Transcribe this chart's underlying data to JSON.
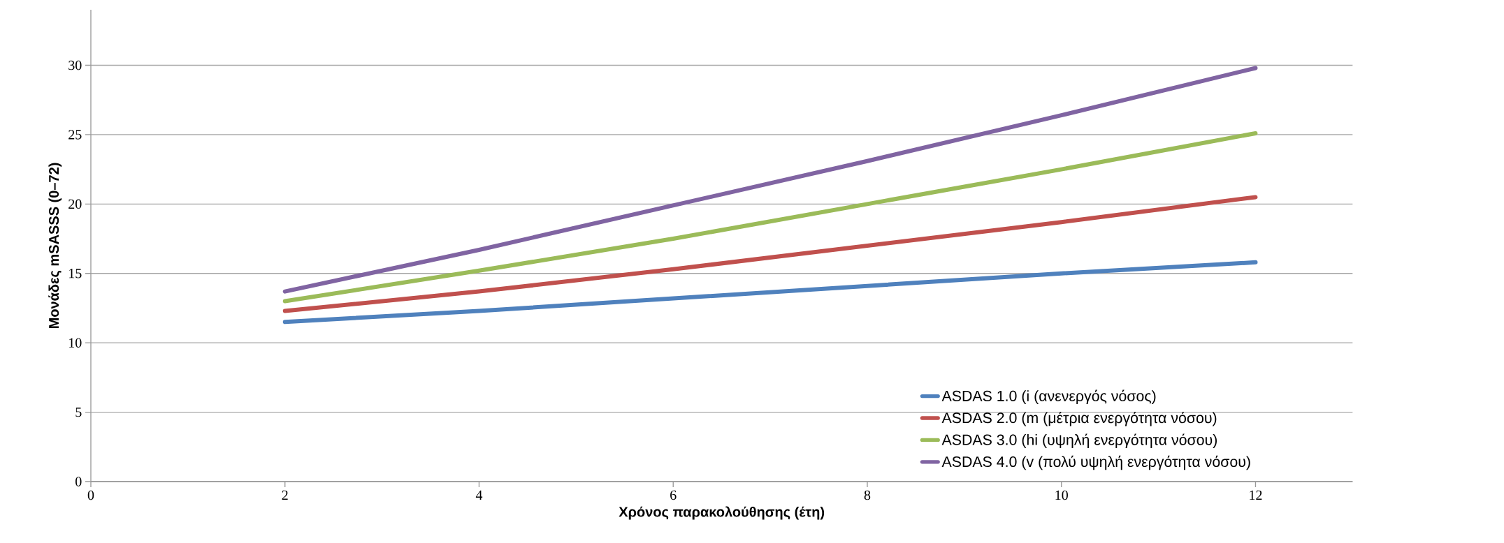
{
  "chart_data": {
    "type": "line",
    "xlabel": "Χρόνος παρακολούθησης (έτη)",
    "ylabel": "Μονάδες mSASSS (0–72)",
    "x": [
      2,
      4,
      6,
      8,
      10,
      12
    ],
    "series": [
      {
        "name": "ASDAS 1.0 (i (ανενεργός νόσος)",
        "color": "#4f81bd",
        "values": [
          11.5,
          12.3,
          13.2,
          14.1,
          15.0,
          15.8
        ]
      },
      {
        "name": "ASDAS 2.0 (m (μέτρια ενεργότητα νόσου)",
        "color": "#c0504d",
        "values": [
          12.3,
          13.7,
          15.3,
          17.0,
          18.7,
          20.5
        ]
      },
      {
        "name": "ASDAS 3.0 (hi (υψηλή ενεργότητα νόσου)",
        "color": "#9bbb59",
        "values": [
          13.0,
          15.2,
          17.5,
          20.0,
          22.5,
          25.1
        ]
      },
      {
        "name": "ASDAS 4.0 (v (πολύ υψηλή ενεργότητα νόσου)",
        "color": "#8064a2",
        "values": [
          13.7,
          16.7,
          19.9,
          23.1,
          26.4,
          29.8
        ]
      }
    ],
    "xlim": [
      0,
      13
    ],
    "ylim": [
      0,
      34
    ],
    "xticks": [
      0,
      2,
      4,
      6,
      8,
      10,
      12
    ],
    "yticks": [
      0,
      5,
      10,
      15,
      20,
      25,
      30
    ],
    "grid": "y",
    "legend": "bottom right",
    "marker": "none",
    "line_style": "solid"
  }
}
